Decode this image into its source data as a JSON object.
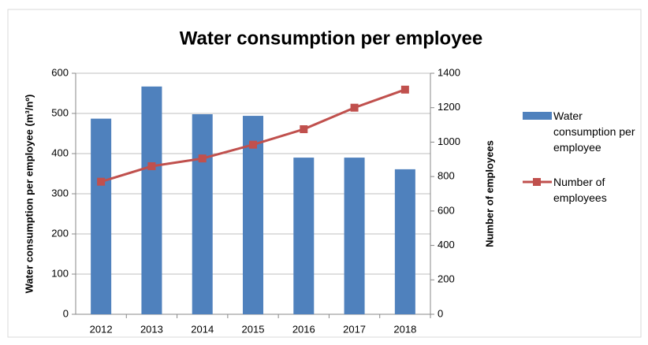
{
  "chart_data": {
    "type": "bar",
    "title": "Water consumption per employee",
    "y_label": "Water consumption per employee (m³/nº)",
    "y2_label": "Number of employees",
    "categories": [
      "2012",
      "2013",
      "2014",
      "2015",
      "2016",
      "2017",
      "2018"
    ],
    "series": [
      {
        "name": "Water consumption per employee",
        "type": "bar",
        "color": "#4f81bd",
        "values": [
          487,
          567,
          498,
          494,
          390,
          390,
          361
        ]
      },
      {
        "name": "Number of employees",
        "type": "line",
        "axis": "y2",
        "color": "#c0504d",
        "values": [
          770,
          860,
          905,
          985,
          1075,
          1200,
          1305
        ]
      }
    ],
    "ylim": [
      0,
      600
    ],
    "yticks": [
      0,
      100,
      200,
      300,
      400,
      500,
      600
    ],
    "y2lim": [
      0,
      1400
    ],
    "y2ticks": [
      0,
      200,
      400,
      600,
      800,
      1000,
      1200,
      1400
    ],
    "grid": true,
    "legend": "right"
  }
}
